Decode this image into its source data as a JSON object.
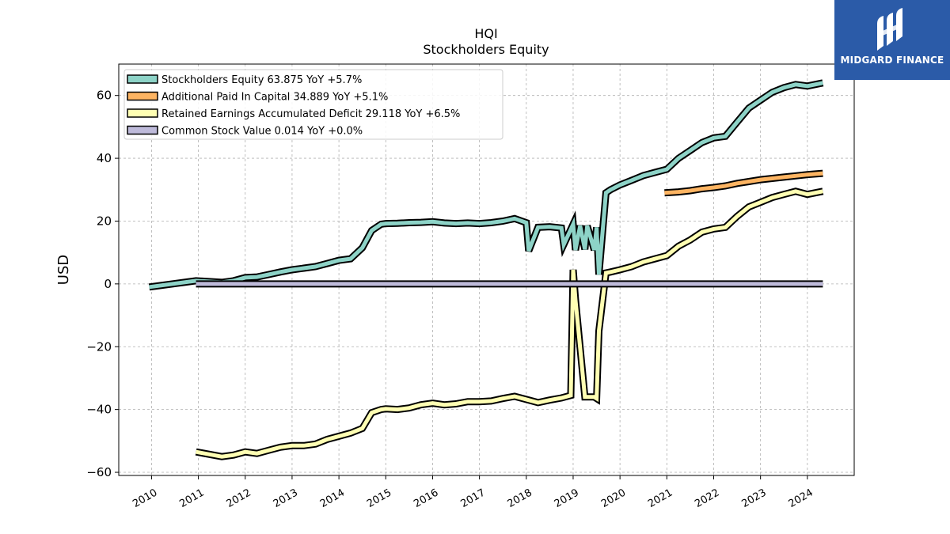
{
  "brand": {
    "name": "MIDGARD FINANCE",
    "icon": "midgard-logo-icon",
    "color": "#2b5ba8"
  },
  "chart_data": {
    "type": "line",
    "title": "HQI",
    "subtitle": "Stockholders  Equity",
    "ylabel": "USD",
    "xlabel": "",
    "ylim": [
      -61,
      70
    ],
    "xlim": [
      2009.3,
      2025.0
    ],
    "yticks": [
      60,
      40,
      20,
      0,
      -20,
      -40,
      -60
    ],
    "ytick_labels": [
      "60",
      "40",
      "20",
      "0",
      "−20",
      "−40",
      "−60"
    ],
    "xticks": [
      2010,
      2011,
      2012,
      2013,
      2014,
      2015,
      2016,
      2017,
      2018,
      2019,
      2020,
      2021,
      2022,
      2023,
      2024
    ],
    "xtick_labels": [
      "2010",
      "2011",
      "2012",
      "2013",
      "2014",
      "2015",
      "2016",
      "2017",
      "2018",
      "2019",
      "2020",
      "2021",
      "2022",
      "2023",
      "2024"
    ],
    "grid": true,
    "legend_position": "top-left",
    "series": [
      {
        "name": "Stockholders Equity  63.875 YoY +5.7%",
        "color": "#8dd3c7",
        "x": [
          2009.95,
          2010.95,
          2011.5,
          2011.75,
          2012.0,
          2012.25,
          2012.5,
          2012.75,
          2013.0,
          2013.25,
          2013.5,
          2013.75,
          2014.0,
          2014.25,
          2014.5,
          2014.7,
          2014.9,
          2015.0,
          2015.25,
          2015.5,
          2015.75,
          2016.0,
          2016.25,
          2016.5,
          2016.75,
          2017.0,
          2017.25,
          2017.5,
          2017.75,
          2018.0,
          2018.05,
          2018.25,
          2018.5,
          2018.75,
          2018.8,
          2019.0,
          2019.05,
          2019.15,
          2019.25,
          2019.3,
          2019.45,
          2019.5,
          2019.55,
          2019.7,
          2019.8,
          2020.0,
          2020.25,
          2020.5,
          2020.75,
          2021.0,
          2021.25,
          2021.5,
          2021.75,
          2022.0,
          2022.25,
          2022.5,
          2022.75,
          2023.0,
          2023.25,
          2023.5,
          2023.75,
          2024.0,
          2024.33
        ],
        "values": [
          -1.0,
          1.0,
          0.5,
          1.0,
          2.0,
          2.2,
          3.0,
          3.8,
          4.5,
          5.0,
          5.5,
          6.5,
          7.5,
          8.0,
          11.5,
          17.0,
          19.0,
          19.2,
          19.3,
          19.5,
          19.6,
          19.8,
          19.4,
          19.2,
          19.4,
          19.2,
          19.5,
          20.0,
          20.8,
          19.5,
          10.5,
          18.0,
          18.2,
          17.8,
          12.5,
          19.0,
          10.8,
          18.5,
          11.0,
          18.5,
          10.8,
          18.0,
          3.0,
          29.0,
          30.0,
          31.5,
          33.0,
          34.5,
          35.5,
          36.5,
          40.0,
          42.5,
          45.0,
          46.5,
          47.0,
          51.5,
          56.0,
          58.5,
          61.0,
          62.5,
          63.5,
          63.0,
          64.0
        ]
      },
      {
        "name": "Additional Paid In Capital  34.889 YoY +5.1%",
        "color": "#fdb462",
        "x": [
          2020.95,
          2021.25,
          2021.5,
          2021.75,
          2022.0,
          2022.25,
          2022.5,
          2022.75,
          2023.0,
          2023.25,
          2023.5,
          2023.75,
          2024.0,
          2024.33
        ],
        "values": [
          29.0,
          29.3,
          29.7,
          30.3,
          30.7,
          31.2,
          32.0,
          32.6,
          33.2,
          33.6,
          34.0,
          34.4,
          34.8,
          35.2
        ]
      },
      {
        "name": "Retained Earnings Accumulated Deficit  29.118 YoY +6.5%",
        "color": "#ffffb3",
        "x": [
          2010.95,
          2011.5,
          2011.75,
          2012.0,
          2012.25,
          2012.5,
          2012.75,
          2013.0,
          2013.25,
          2013.5,
          2013.75,
          2014.0,
          2014.25,
          2014.5,
          2014.7,
          2014.9,
          2015.0,
          2015.25,
          2015.5,
          2015.75,
          2016.0,
          2016.25,
          2016.5,
          2016.75,
          2017.0,
          2017.25,
          2017.5,
          2017.75,
          2018.0,
          2018.25,
          2018.5,
          2018.75,
          2018.95,
          2019.0,
          2019.05,
          2019.25,
          2019.45,
          2019.5,
          2019.55,
          2019.7,
          2019.8,
          2020.0,
          2020.25,
          2020.5,
          2020.75,
          2021.0,
          2021.25,
          2021.5,
          2021.75,
          2022.0,
          2022.25,
          2022.5,
          2022.75,
          2023.0,
          2023.25,
          2023.5,
          2023.75,
          2024.0,
          2024.33
        ],
        "values": [
          -53.5,
          -55.0,
          -54.5,
          -53.5,
          -54.0,
          -53.0,
          -52.0,
          -51.5,
          -51.5,
          -51.0,
          -49.5,
          -48.5,
          -47.5,
          -46.0,
          -41.0,
          -40.0,
          -39.8,
          -40.0,
          -39.5,
          -38.5,
          -38.0,
          -38.5,
          -38.2,
          -37.5,
          -37.5,
          -37.3,
          -36.5,
          -35.8,
          -36.8,
          -37.8,
          -37.0,
          -36.3,
          -35.5,
          4.5,
          -5.0,
          -36.0,
          -36.0,
          -36.5,
          -15.0,
          3.5,
          3.8,
          4.5,
          5.5,
          7.0,
          8.0,
          9.0,
          12.0,
          14.0,
          16.5,
          17.5,
          18.0,
          21.5,
          24.5,
          26.0,
          27.5,
          28.5,
          29.5,
          28.5,
          29.5
        ]
      },
      {
        "name": "Common Stock Value  0.014 YoY +0.0%",
        "color": "#bebada",
        "x": [
          2010.95,
          2024.33
        ],
        "values": [
          0.0,
          0.0
        ]
      }
    ]
  }
}
